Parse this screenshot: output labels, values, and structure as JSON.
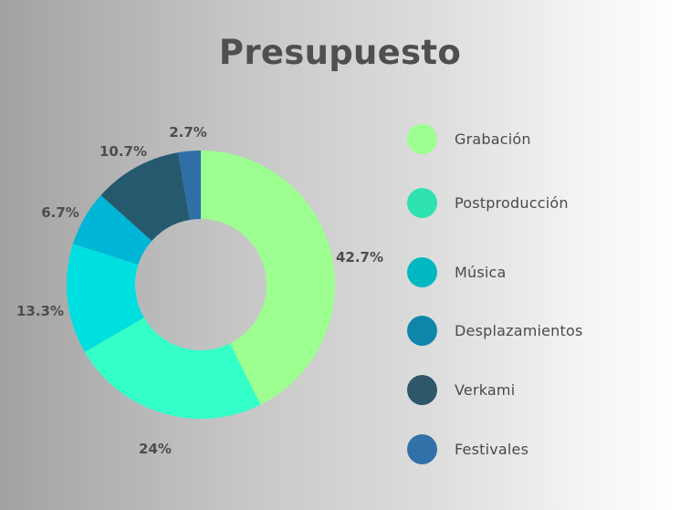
{
  "chart_data": {
    "type": "pie",
    "subtype": "donut",
    "title": "Presupuesto",
    "categories": [
      "Grabación",
      "Postproducción",
      "Música",
      "Desplazamientos",
      "Verkami",
      "Festivales"
    ],
    "values": [
      42.7,
      24,
      13.3,
      6.7,
      10.7,
      2.7
    ],
    "labels": [
      "42.7%",
      "24%",
      "13.3%",
      "6.7%",
      "10.7%",
      "2.7%"
    ],
    "slice_colors": [
      "#9cff8f",
      "#34ffc8",
      "#00dfe0",
      "#00b6d6",
      "#255a6e",
      "#2f6fa8"
    ],
    "legend_colors": [
      "#9cff8f",
      "#2fe3b0",
      "#00b8c0",
      "#0e86aa",
      "#2e5769",
      "#3270aa"
    ],
    "legend_position": "right"
  }
}
